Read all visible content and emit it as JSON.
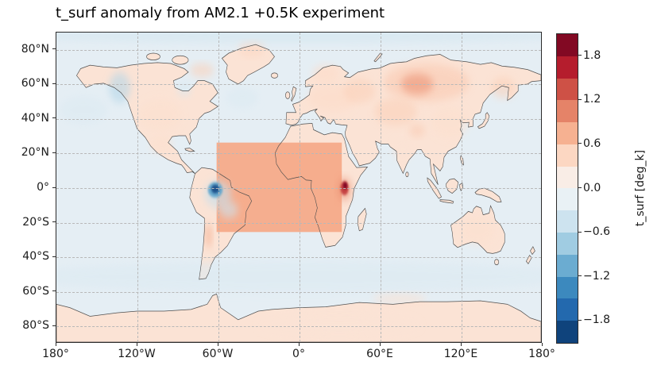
{
  "chart_data": {
    "type": "heatmap",
    "title": "t_surf anomaly from AM2.1 +0.5K experiment",
    "xlim": [
      -180,
      180
    ],
    "ylim": [
      -90,
      90
    ],
    "x_axis": {
      "ticks": [
        {
          "label": "180°",
          "lon": -180
        },
        {
          "label": "120°W",
          "lon": -120
        },
        {
          "label": "60°W",
          "lon": -60
        },
        {
          "label": "0°",
          "lon": 0
        },
        {
          "label": "60°E",
          "lon": 60
        },
        {
          "label": "120°E",
          "lon": 120
        },
        {
          "label": "180°",
          "lon": 180
        }
      ]
    },
    "y_axis": {
      "ticks": [
        {
          "label": "80°N",
          "lat": 80
        },
        {
          "label": "60°N",
          "lat": 60
        },
        {
          "label": "40°N",
          "lat": 40
        },
        {
          "label": "20°N",
          "lat": 20
        },
        {
          "label": "0°",
          "lat": 0
        },
        {
          "label": "20°S",
          "lat": -20
        },
        {
          "label": "40°S",
          "lat": -40
        },
        {
          "label": "60°S",
          "lat": -60
        },
        {
          "label": "80°S",
          "lat": -80
        }
      ]
    },
    "grid": {
      "style": "dashed",
      "color": "#b8b8b8"
    },
    "colorbar": {
      "label": "t_surf [deg_k]",
      "cmap": "RdBu_r",
      "vmin": -2.1,
      "vmax": 2.1,
      "n_bands": 14,
      "ticks": [
        {
          "label": "1.8",
          "value": 1.8
        },
        {
          "label": "1.2",
          "value": 1.2
        },
        {
          "label": "0.6",
          "value": 0.6
        },
        {
          "label": "0.0",
          "value": 0.0
        },
        {
          "label": "−0.6",
          "value": -0.6
        },
        {
          "label": "−1.2",
          "value": -1.2
        },
        {
          "label": "−1.8",
          "value": -1.8
        }
      ],
      "cmap_stops": [
        [
          0.0,
          "#053061"
        ],
        [
          0.1,
          "#2166ac"
        ],
        [
          0.2,
          "#4393c3"
        ],
        [
          0.3,
          "#92c5de"
        ],
        [
          0.4,
          "#d1e5f0"
        ],
        [
          0.5,
          "#f7f7f7"
        ],
        [
          0.6,
          "#fddbc7"
        ],
        [
          0.7,
          "#f4a582"
        ],
        [
          0.8,
          "#d6604d"
        ],
        [
          0.9,
          "#b2182b"
        ],
        [
          1.0,
          "#67001f"
        ]
      ]
    },
    "map": {
      "ocean_anomaly": -0.2,
      "land_anomaly": 0.3,
      "coastline_color": "#4d4d4d"
    },
    "features": [
      {
        "name": "southern-ocean-cooling",
        "shape": "ellipse",
        "lon": 0,
        "lat": -52,
        "rlon": 210,
        "rlat": 9,
        "value": -0.3,
        "soft": true
      },
      {
        "name": "arctic-ocean-cooling",
        "shape": "ellipse",
        "lon": 0,
        "lat": 88.5,
        "rlon": 210,
        "rlat": 4.5,
        "value": -0.4,
        "soft": true
      },
      {
        "name": "north-pacific-cooling",
        "shape": "ellipse",
        "lon": -160,
        "lat": 45,
        "rlon": 18,
        "rlat": 8,
        "value": -0.3,
        "soft": true
      },
      {
        "name": "northwest-canada-cooling",
        "shape": "ellipse",
        "lon": -133,
        "lat": 58,
        "rlon": 8,
        "rlat": 9,
        "value": -0.6,
        "soft": true
      },
      {
        "name": "hudson-bay-cooling",
        "shape": "ellipse",
        "lon": -85,
        "lat": 57,
        "rlon": 5,
        "rlat": 4,
        "value": -0.35,
        "soft": true
      },
      {
        "name": "north-atlantic-cooling",
        "shape": "ellipse",
        "lon": -42,
        "lat": 52,
        "rlon": 12,
        "rlat": 6,
        "value": -0.3,
        "soft": true
      },
      {
        "name": "us-interior-warming",
        "shape": "ellipse",
        "lon": -103,
        "lat": 42,
        "rlon": 16,
        "rlat": 9,
        "value": 0.35,
        "soft": true
      },
      {
        "name": "mexico-warming",
        "shape": "ellipse",
        "lon": -102,
        "lat": 25,
        "rlon": 8,
        "rlat": 5,
        "value": 0.35,
        "soft": true
      },
      {
        "name": "baffin-island-warming",
        "shape": "ellipse",
        "lon": -72,
        "lat": 68,
        "rlon": 9,
        "rlat": 4,
        "value": 0.5,
        "soft": true
      },
      {
        "name": "greenland-north-warming",
        "shape": "ellipse",
        "lon": -35,
        "lat": 80,
        "rlon": 10,
        "rlat": 4,
        "value": 0.45,
        "soft": true
      },
      {
        "name": "europe-warming",
        "shape": "ellipse",
        "lon": 25,
        "lat": 52,
        "rlon": 18,
        "rlat": 8,
        "value": 0.4,
        "soft": true
      },
      {
        "name": "scandinavia-warming",
        "shape": "ellipse",
        "lon": 20,
        "lat": 66,
        "rlon": 10,
        "rlat": 5,
        "value": 0.4,
        "soft": true
      },
      {
        "name": "west-russia-warming",
        "shape": "ellipse",
        "lon": 45,
        "lat": 56,
        "rlon": 12,
        "rlat": 7,
        "value": 0.5,
        "soft": true
      },
      {
        "name": "siberia-warming",
        "shape": "ellipse",
        "lon": 95,
        "lat": 61,
        "rlon": 32,
        "rlat": 11,
        "value": 0.55,
        "soft": true
      },
      {
        "name": "siberia-warming-core",
        "shape": "ellipse",
        "lon": 88,
        "lat": 60,
        "rlon": 12,
        "rlat": 6,
        "value": 0.95,
        "soft": true
      },
      {
        "name": "central-asia-warming",
        "shape": "ellipse",
        "lon": 72,
        "lat": 44,
        "rlon": 16,
        "rlat": 8,
        "value": 0.5,
        "soft": true
      },
      {
        "name": "tibet-warming",
        "shape": "ellipse",
        "lon": 88,
        "lat": 33,
        "rlon": 6,
        "rlat": 3.5,
        "value": 0.55,
        "soft": true
      },
      {
        "name": "india-warming",
        "shape": "ellipse",
        "lon": 77,
        "lat": 22,
        "rlon": 7,
        "rlat": 6,
        "value": 0.3,
        "soft": true
      },
      {
        "name": "east-asia-warming",
        "shape": "ellipse",
        "lon": 112,
        "lat": 38,
        "rlon": 14,
        "rlat": 9,
        "value": 0.35,
        "soft": true
      },
      {
        "name": "kamchatka-okhotsk-warming",
        "shape": "ellipse",
        "lon": 152,
        "lat": 58,
        "rlon": 9,
        "rlat": 6,
        "value": 0.5,
        "soft": true
      },
      {
        "name": "australia-interior-warming",
        "shape": "ellipse",
        "lon": 133,
        "lat": -25,
        "rlon": 12,
        "rlat": 8,
        "value": 0.35,
        "soft": true
      },
      {
        "name": "antarctic-coast-warming",
        "shape": "ellipse",
        "lon": 30,
        "lat": -80,
        "rlon": 60,
        "rlat": 6,
        "value": 0.3,
        "soft": true
      },
      {
        "name": "antarctic-indian-coast-warming",
        "shape": "ellipse",
        "lon": 75,
        "lat": -65,
        "rlon": 20,
        "rlat": 3,
        "value": 0.35,
        "soft": true
      },
      {
        "name": "tropical-atlantic-africa-forcing-patch",
        "shape": "rect",
        "lon_min": -61,
        "lon_max": 32,
        "lat_min": -26,
        "lat_max": 26,
        "value": 0.8,
        "opacity": 0.95
      },
      {
        "name": "amazon-cooling-outer",
        "shape": "ellipse",
        "lon": -60,
        "lat": -4,
        "rlon": 10,
        "rlat": 8,
        "value": -0.5,
        "soft": true
      },
      {
        "name": "south-brazil-cooling",
        "shape": "ellipse",
        "lon": -52,
        "lat": -13,
        "rlon": 7,
        "rlat": 5,
        "value": -0.45,
        "soft": true
      },
      {
        "name": "amazon-cooling-mid",
        "shape": "ellipse",
        "lon": -62,
        "lat": -1.5,
        "rlon": 5.5,
        "rlat": 4.5,
        "value": -1.1
      },
      {
        "name": "amazon-cooling-core",
        "shape": "ellipse",
        "lon": -62,
        "lat": -1,
        "rlon": 3,
        "rlat": 2.5,
        "value": -1.9
      },
      {
        "name": "andes-warming-streak",
        "shape": "ellipse",
        "lon": -67,
        "lat": -28,
        "rlon": 2.5,
        "rlat": 7,
        "value": 0.8,
        "soft": true
      },
      {
        "name": "east-africa-warming-outer",
        "shape": "ellipse",
        "lon": 34,
        "lat": -1,
        "rlon": 5,
        "rlat": 6.5,
        "value": 1.0,
        "soft": true
      },
      {
        "name": "east-africa-warming-mid",
        "shape": "ellipse",
        "lon": 34,
        "lat": -0.5,
        "rlon": 3,
        "rlat": 4,
        "value": 1.5
      },
      {
        "name": "east-africa-warming-core",
        "shape": "ellipse",
        "lon": 34.5,
        "lat": 1,
        "rlon": 1.6,
        "rlat": 2,
        "value": 2.0
      }
    ]
  }
}
